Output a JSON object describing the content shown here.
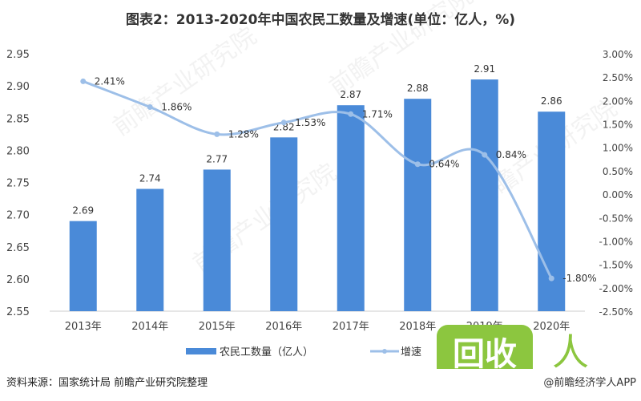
{
  "chart_data": {
    "type": "bar+line",
    "title": "图表2：2013-2020年中国农民工数量及增速(单位：亿人，%)",
    "categories": [
      "2013年",
      "2014年",
      "2015年",
      "2016年",
      "2017年",
      "2018年",
      "2019年",
      "2020年"
    ],
    "series": [
      {
        "name": "农民工数量（亿人）",
        "type": "bar",
        "axis": "left",
        "values": [
          2.69,
          2.74,
          2.77,
          2.82,
          2.87,
          2.88,
          2.91,
          2.86
        ],
        "labels": [
          "2.69",
          "2.74",
          "2.77",
          "2.82",
          "2.87",
          "2.88",
          "2.91",
          "2.86"
        ],
        "color": "#4a8ad8"
      },
      {
        "name": "增速",
        "type": "line",
        "axis": "right",
        "values": [
          2.41,
          1.86,
          1.28,
          1.53,
          1.71,
          0.64,
          0.84,
          -1.8
        ],
        "labels": [
          "2.41%",
          "1.86%",
          "1.28%",
          "1.53%",
          "1.71%",
          "0.64%",
          "0.84%",
          "-1.80%"
        ],
        "color": "#9dbfe8"
      }
    ],
    "left_axis": {
      "ylim": [
        2.55,
        2.95
      ],
      "ticks": [
        "2.95",
        "2.90",
        "2.85",
        "2.80",
        "2.75",
        "2.70",
        "2.65",
        "2.60",
        "2.55"
      ]
    },
    "right_axis": {
      "ylim": [
        -2.5,
        3.0
      ],
      "ticks": [
        "3.00%",
        "2.50%",
        "2.00%",
        "1.50%",
        "1.00%",
        "0.50%",
        "0.00%",
        "-0.50%",
        "-1.00%",
        "-1.50%",
        "-2.00%",
        "-2.50%"
      ]
    },
    "grid": false,
    "legend": "bottom"
  },
  "source": "资料来源：国家统计局 前瞻产业研究院整理",
  "credit": "@前瞻经济学人APP",
  "watermark": "前瞻产业研究院",
  "logo": {
    "text": "回收人",
    "sub": "HUISHOUREN",
    "color": "#8cc63f"
  }
}
